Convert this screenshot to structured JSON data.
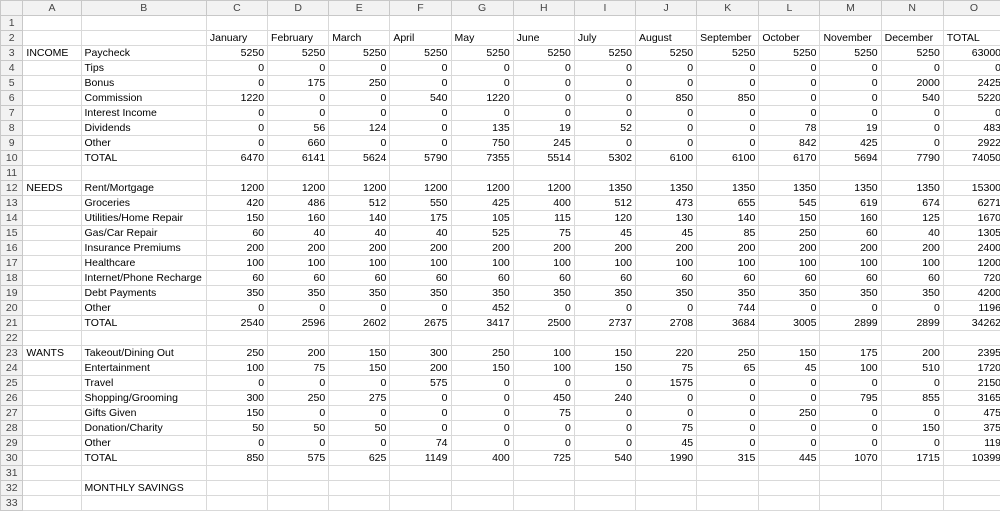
{
  "columns": [
    "A",
    "B",
    "C",
    "D",
    "E",
    "F",
    "G",
    "H",
    "I",
    "J",
    "K",
    "L",
    "M",
    "N",
    "O"
  ],
  "months": [
    "January",
    "February",
    "March",
    "April",
    "May",
    "June",
    "July",
    "August",
    "September",
    "October",
    "November",
    "December",
    "TOTAL"
  ],
  "income": {
    "section": "INCOME",
    "rows": [
      {
        "label": "Paycheck",
        "values": [
          "5250",
          "5250",
          "5250",
          "5250",
          "5250",
          "5250",
          "5250",
          "5250",
          "5250",
          "5250",
          "5250",
          "5250",
          "63000"
        ]
      },
      {
        "label": "Tips",
        "values": [
          "0",
          "0",
          "0",
          "0",
          "0",
          "0",
          "0",
          "0",
          "0",
          "0",
          "0",
          "0",
          "0"
        ]
      },
      {
        "label": "Bonus",
        "values": [
          "0",
          "175",
          "250",
          "0",
          "0",
          "0",
          "0",
          "0",
          "0",
          "0",
          "0",
          "2000",
          "2425"
        ]
      },
      {
        "label": "Commission",
        "values": [
          "1220",
          "0",
          "0",
          "540",
          "1220",
          "0",
          "0",
          "850",
          "850",
          "0",
          "0",
          "540",
          "5220"
        ]
      },
      {
        "label": "Interest Income",
        "values": [
          "0",
          "0",
          "0",
          "0",
          "0",
          "0",
          "0",
          "0",
          "0",
          "0",
          "0",
          "0",
          "0"
        ]
      },
      {
        "label": "Dividends",
        "values": [
          "0",
          "56",
          "124",
          "0",
          "135",
          "19",
          "52",
          "0",
          "0",
          "78",
          "19",
          "0",
          "483"
        ]
      },
      {
        "label": "Other",
        "values": [
          "0",
          "660",
          "0",
          "0",
          "750",
          "245",
          "0",
          "0",
          "0",
          "842",
          "425",
          "0",
          "2922"
        ]
      },
      {
        "label": "TOTAL",
        "values": [
          "6470",
          "6141",
          "5624",
          "5790",
          "7355",
          "5514",
          "5302",
          "6100",
          "6100",
          "6170",
          "5694",
          "7790",
          "74050"
        ]
      }
    ]
  },
  "needs": {
    "section": "NEEDS",
    "rows": [
      {
        "label": "Rent/Mortgage",
        "values": [
          "1200",
          "1200",
          "1200",
          "1200",
          "1200",
          "1200",
          "1350",
          "1350",
          "1350",
          "1350",
          "1350",
          "1350",
          "15300"
        ]
      },
      {
        "label": "Groceries",
        "values": [
          "420",
          "486",
          "512",
          "550",
          "425",
          "400",
          "512",
          "473",
          "655",
          "545",
          "619",
          "674",
          "6271"
        ]
      },
      {
        "label": "Utilities/Home Repair",
        "values": [
          "150",
          "160",
          "140",
          "175",
          "105",
          "115",
          "120",
          "130",
          "140",
          "150",
          "160",
          "125",
          "1670"
        ]
      },
      {
        "label": "Gas/Car Repair",
        "values": [
          "60",
          "40",
          "40",
          "40",
          "525",
          "75",
          "45",
          "45",
          "85",
          "250",
          "60",
          "40",
          "1305"
        ]
      },
      {
        "label": "Insurance Premiums",
        "values": [
          "200",
          "200",
          "200",
          "200",
          "200",
          "200",
          "200",
          "200",
          "200",
          "200",
          "200",
          "200",
          "2400"
        ]
      },
      {
        "label": "Healthcare",
        "values": [
          "100",
          "100",
          "100",
          "100",
          "100",
          "100",
          "100",
          "100",
          "100",
          "100",
          "100",
          "100",
          "1200"
        ]
      },
      {
        "label": "Internet/Phone Recharge",
        "values": [
          "60",
          "60",
          "60",
          "60",
          "60",
          "60",
          "60",
          "60",
          "60",
          "60",
          "60",
          "60",
          "720"
        ]
      },
      {
        "label": "Debt Payments",
        "values": [
          "350",
          "350",
          "350",
          "350",
          "350",
          "350",
          "350",
          "350",
          "350",
          "350",
          "350",
          "350",
          "4200"
        ]
      },
      {
        "label": "Other",
        "values": [
          "0",
          "0",
          "0",
          "0",
          "452",
          "0",
          "0",
          "0",
          "744",
          "0",
          "0",
          "0",
          "1196"
        ]
      },
      {
        "label": "TOTAL",
        "values": [
          "2540",
          "2596",
          "2602",
          "2675",
          "3417",
          "2500",
          "2737",
          "2708",
          "3684",
          "3005",
          "2899",
          "2899",
          "34262"
        ]
      }
    ]
  },
  "wants": {
    "section": "WANTS",
    "rows": [
      {
        "label": "Takeout/Dining Out",
        "values": [
          "250",
          "200",
          "150",
          "300",
          "250",
          "100",
          "150",
          "220",
          "250",
          "150",
          "175",
          "200",
          "2395"
        ]
      },
      {
        "label": "Entertainment",
        "values": [
          "100",
          "75",
          "150",
          "200",
          "150",
          "100",
          "150",
          "75",
          "65",
          "45",
          "100",
          "510",
          "1720"
        ]
      },
      {
        "label": "Travel",
        "values": [
          "0",
          "0",
          "0",
          "575",
          "0",
          "0",
          "0",
          "1575",
          "0",
          "0",
          "0",
          "0",
          "2150"
        ]
      },
      {
        "label": "Shopping/Grooming",
        "values": [
          "300",
          "250",
          "275",
          "0",
          "0",
          "450",
          "240",
          "0",
          "0",
          "0",
          "795",
          "855",
          "3165"
        ]
      },
      {
        "label": "Gifts Given",
        "values": [
          "150",
          "0",
          "0",
          "0",
          "0",
          "75",
          "0",
          "0",
          "0",
          "250",
          "0",
          "0",
          "475"
        ]
      },
      {
        "label": "Donation/Charity",
        "values": [
          "50",
          "50",
          "50",
          "0",
          "0",
          "0",
          "0",
          "75",
          "0",
          "0",
          "0",
          "150",
          "375"
        ]
      },
      {
        "label": "Other",
        "values": [
          "0",
          "0",
          "0",
          "74",
          "0",
          "0",
          "0",
          "45",
          "0",
          "0",
          "0",
          "0",
          "119"
        ]
      },
      {
        "label": "TOTAL",
        "values": [
          "850",
          "575",
          "625",
          "1149",
          "400",
          "725",
          "540",
          "1990",
          "315",
          "445",
          "1070",
          "1715",
          "10399"
        ]
      }
    ]
  },
  "savings_label": "MONTHLY SAVINGS",
  "row_count": 33
}
